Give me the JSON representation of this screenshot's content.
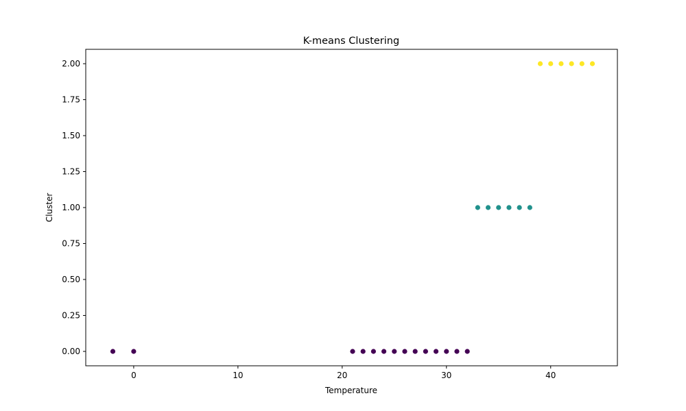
{
  "chart_data": {
    "type": "scatter",
    "title": "K-means Clustering",
    "xlabel": "Temperature",
    "ylabel": "Cluster",
    "xlim": [
      -4.6,
      46.4
    ],
    "ylim": [
      -0.1,
      2.1
    ],
    "xticks": [
      0,
      10,
      20,
      30,
      40
    ],
    "xtick_labels": [
      "0",
      "10",
      "20",
      "30",
      "40"
    ],
    "yticks": [
      0,
      0.25,
      0.5,
      0.75,
      1.0,
      1.25,
      1.5,
      1.75,
      2.0
    ],
    "ytick_labels": [
      "0.00",
      "0.25",
      "0.50",
      "0.75",
      "1.00",
      "1.25",
      "1.50",
      "1.75",
      "2.00"
    ],
    "grid": false,
    "colors": {
      "0": "#440154",
      "1": "#21918c",
      "2": "#fde725"
    },
    "points": [
      {
        "x": -2,
        "y": 0
      },
      {
        "x": 0,
        "y": 0
      },
      {
        "x": 21,
        "y": 0
      },
      {
        "x": 22,
        "y": 0
      },
      {
        "x": 23,
        "y": 0
      },
      {
        "x": 24,
        "y": 0
      },
      {
        "x": 25,
        "y": 0
      },
      {
        "x": 26,
        "y": 0
      },
      {
        "x": 27,
        "y": 0
      },
      {
        "x": 28,
        "y": 0
      },
      {
        "x": 29,
        "y": 0
      },
      {
        "x": 30,
        "y": 0
      },
      {
        "x": 31,
        "y": 0
      },
      {
        "x": 32,
        "y": 0
      },
      {
        "x": 33,
        "y": 1
      },
      {
        "x": 34,
        "y": 1
      },
      {
        "x": 35,
        "y": 1
      },
      {
        "x": 36,
        "y": 1
      },
      {
        "x": 37,
        "y": 1
      },
      {
        "x": 38,
        "y": 1
      },
      {
        "x": 39,
        "y": 2
      },
      {
        "x": 40,
        "y": 2
      },
      {
        "x": 41,
        "y": 2
      },
      {
        "x": 42,
        "y": 2
      },
      {
        "x": 43,
        "y": 2
      },
      {
        "x": 44,
        "y": 2
      }
    ]
  }
}
